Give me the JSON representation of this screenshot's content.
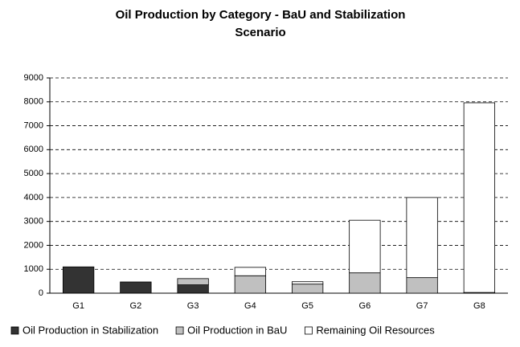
{
  "chart_data": {
    "type": "bar",
    "stacked": true,
    "title": "Oil Production by Category - BaU and Stabilization Scenario",
    "categories": [
      "G1",
      "G2",
      "G3",
      "G4",
      "G5",
      "G6",
      "G7",
      "G8"
    ],
    "series": [
      {
        "name": "Oil Production in Stabilization",
        "color": "#333333",
        "values": [
          1100,
          470,
          350,
          0,
          0,
          0,
          0,
          0
        ]
      },
      {
        "name": "Oil Production in BaU",
        "color": "#c0c0c0",
        "values": [
          0,
          0,
          260,
          730,
          380,
          850,
          650,
          30
        ]
      },
      {
        "name": "Remaining Oil Resources",
        "color": "#ffffff",
        "values": [
          0,
          0,
          0,
          350,
          100,
          2200,
          3350,
          7930
        ]
      }
    ],
    "ylim": [
      0,
      9000
    ],
    "yticks": [
      0,
      1000,
      2000,
      3000,
      4000,
      5000,
      6000,
      7000,
      8000,
      9000
    ],
    "grid": true,
    "legend": "bottom"
  }
}
